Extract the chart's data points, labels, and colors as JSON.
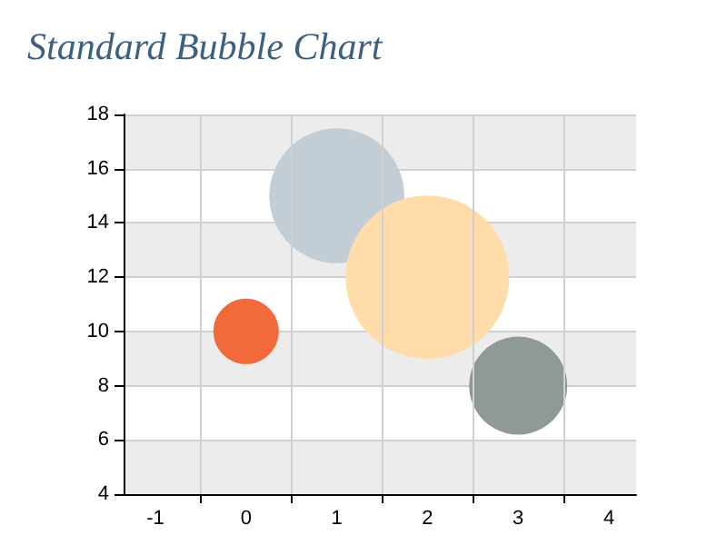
{
  "chart_data": {
    "type": "bubble",
    "title": "Standard Bubble Chart",
    "x": [
      0,
      1,
      2,
      3
    ],
    "values": [
      10,
      15,
      12,
      8
    ],
    "sizes": [
      0.16,
      0.68,
      1,
      0.36
    ],
    "colors": [
      "#f26a3a",
      "#c3cdd6",
      "#ffdcaa",
      "#8f9a98"
    ],
    "xlim": [
      -1.35,
      4.3
    ],
    "xticks": [
      -1,
      {
        "value": -0.5,
        "label": null
      },
      0,
      {
        "value": 0.5,
        "label": null
      },
      1,
      {
        "value": 1.5,
        "label": null
      },
      2,
      {
        "value": 2.5,
        "label": null
      },
      3,
      {
        "value": 3.5,
        "label": null
      },
      4
    ],
    "ylim": [
      4,
      18
    ],
    "yticks": [
      4,
      6,
      8,
      10,
      12,
      14,
      16,
      18
    ],
    "grid": true
  }
}
